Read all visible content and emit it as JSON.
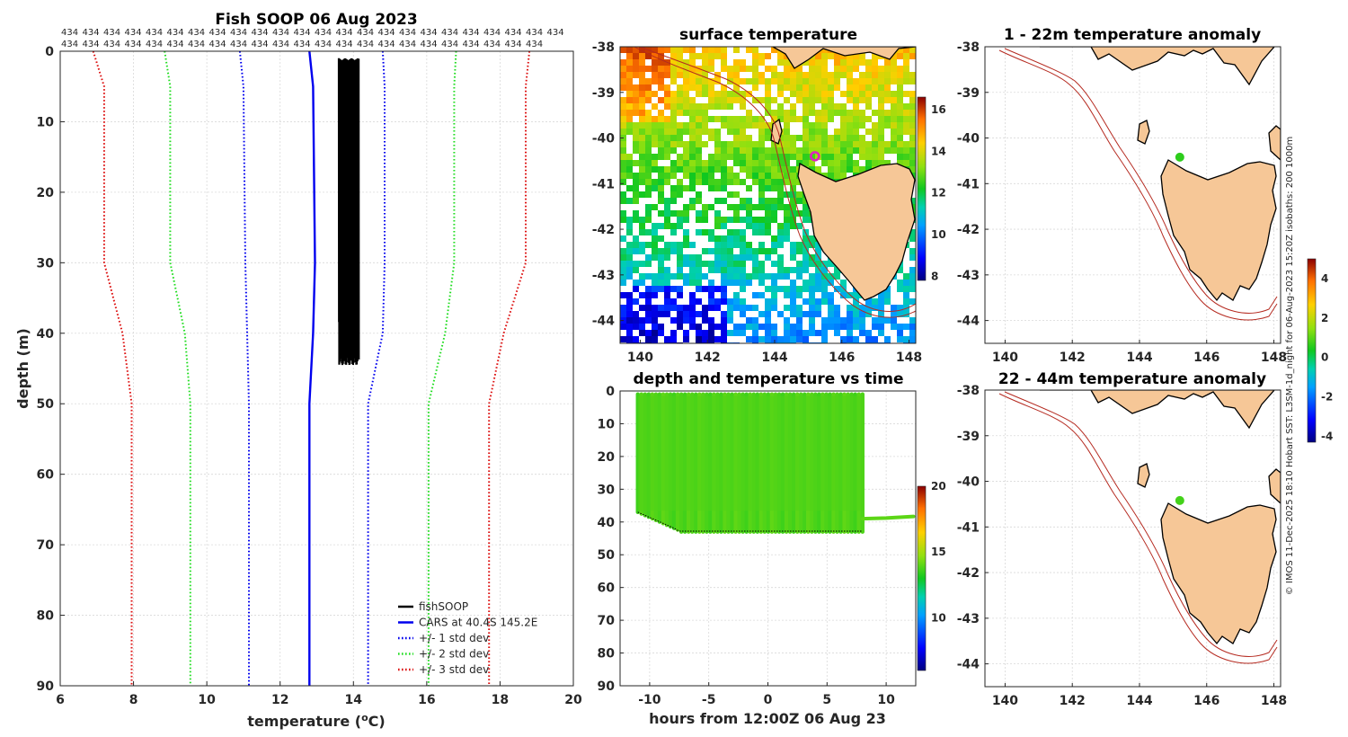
{
  "figure": {
    "credit": "© IMOS 11-Dec-2025 18:10 Hobart SST: L3SM-1d_night for 06-Aug-2023 15:20Z isobaths: 200  1000m"
  },
  "profile": {
    "title": "Fish SOOP 06 Aug 2023",
    "xlabel": "temperature (°C)",
    "xlabel_base": "temperature (",
    "xlabel_sup": "o",
    "xlabel_end": "C)",
    "ylabel": "depth (m)",
    "top_row1": [
      "434",
      "434",
      "434",
      "434",
      "434",
      "434",
      "434",
      "434",
      "434",
      "434",
      "434",
      "434",
      "434",
      "434",
      "434",
      "434",
      "434",
      "434",
      "434",
      "434",
      "434",
      "434",
      "434",
      "434"
    ],
    "top_row2": [
      "434",
      "434",
      "434",
      "434",
      "434",
      "434",
      "434",
      "434",
      "434",
      "434",
      "434",
      "434",
      "434",
      "434",
      "434",
      "434",
      "434",
      "434",
      "434",
      "434",
      "434",
      "434",
      "434"
    ],
    "legend": [
      {
        "label": "fishSOOP",
        "color": "#000000",
        "style": "solid"
      },
      {
        "label": "CARS at 40.4S 145.2E",
        "color": "#0000ee",
        "style": "solid"
      },
      {
        "label": "+/- 1 std dev",
        "color": "#0000ee",
        "style": "dotted"
      },
      {
        "label": "+/- 2 std dev",
        "color": "#22dd22",
        "style": "dotted"
      },
      {
        "label": "+/- 3 std dev",
        "color": "#dd1111",
        "style": "dotted"
      }
    ]
  },
  "surface_map": {
    "title": "surface temperature",
    "colorbar_ticks": [
      "8",
      "10",
      "12",
      "14",
      "16"
    ]
  },
  "time_panel": {
    "title": "depth and temperature vs time",
    "xlabel": "hours from 12:00Z 06 Aug 23",
    "colorbar_ticks": [
      "10",
      "15",
      "20"
    ]
  },
  "anomaly_top": {
    "title": "1 - 22m temperature anomaly"
  },
  "anomaly_bottom": {
    "title": "22 - 44m temperature anomaly"
  },
  "anomaly_colorbar": {
    "ticks": [
      "-4",
      "-2",
      "0",
      "2",
      "4"
    ]
  },
  "chart_data": [
    {
      "type": "line",
      "title": "Fish SOOP 06 Aug 2023",
      "xlabel": "temperature (°C)",
      "ylabel": "depth (m)",
      "xlim": [
        6,
        20
      ],
      "ylim": [
        0,
        90
      ],
      "y_reversed": true,
      "xticks": [
        6,
        8,
        10,
        12,
        14,
        16,
        18,
        20
      ],
      "yticks": [
        0,
        10,
        20,
        30,
        40,
        50,
        60,
        70,
        80,
        90
      ],
      "grid": true,
      "legend_position": "bottom-right",
      "series": [
        {
          "name": "CARS at 40.4S 145.2E",
          "color": "#0000ee",
          "style": "solid",
          "depth": [
            0,
            5,
            30,
            40,
            50,
            90
          ],
          "temp": [
            12.8,
            12.9,
            12.95,
            12.9,
            12.8,
            12.8
          ]
        },
        {
          "name": "+1 std dev",
          "color": "#0000ee",
          "style": "dotted",
          "depth": [
            0,
            5,
            30,
            40,
            50,
            90
          ],
          "temp": [
            14.8,
            14.85,
            14.85,
            14.8,
            14.4,
            14.4
          ]
        },
        {
          "name": "-1 std dev",
          "color": "#0000ee",
          "style": "dotted",
          "depth": [
            0,
            5,
            30,
            40,
            50,
            90
          ],
          "temp": [
            10.9,
            11.0,
            11.05,
            11.1,
            11.15,
            11.15
          ]
        },
        {
          "name": "+2 std dev",
          "color": "#22dd22",
          "style": "dotted",
          "depth": [
            0,
            5,
            30,
            40,
            50,
            90
          ],
          "temp": [
            16.8,
            16.75,
            16.75,
            16.5,
            16.05,
            16.05
          ]
        },
        {
          "name": "-2 std dev",
          "color": "#22dd22",
          "style": "dotted",
          "depth": [
            0,
            5,
            30,
            40,
            50,
            90
          ],
          "temp": [
            8.85,
            9.0,
            9.0,
            9.4,
            9.55,
            9.55
          ]
        },
        {
          "name": "+3 std dev",
          "color": "#dd1111",
          "style": "dotted",
          "depth": [
            0,
            5,
            30,
            40,
            50,
            90
          ],
          "temp": [
            18.8,
            18.7,
            18.7,
            18.1,
            17.7,
            17.7
          ]
        },
        {
          "name": "-3 std dev",
          "color": "#dd1111",
          "style": "dotted",
          "depth": [
            0,
            5,
            30,
            40,
            50,
            90
          ],
          "temp": [
            6.9,
            7.2,
            7.2,
            7.7,
            7.95,
            7.95
          ]
        },
        {
          "name": "fishSOOP",
          "color": "#000000",
          "style": "solid",
          "type": "band",
          "depth_range": [
            1,
            44.5
          ],
          "temp_range": [
            13.6,
            14.15
          ]
        }
      ]
    },
    {
      "type": "heatmap",
      "title": "surface temperature",
      "xlim": [
        139.4,
        148.2
      ],
      "ylim": [
        -44.5,
        -38
      ],
      "xticks": [
        140,
        142,
        144,
        146,
        148
      ],
      "yticks": [
        -38,
        -39,
        -40,
        -41,
        -42,
        -43,
        -44
      ],
      "colorbar": {
        "range": [
          7.8,
          16.6
        ],
        "ticks": [
          8,
          10,
          12,
          14,
          16
        ]
      },
      "marker": {
        "lon": 145.2,
        "lat": -40.4
      }
    },
    {
      "type": "scatter",
      "title": "depth and temperature vs time",
      "xlabel": "hours from 12:00Z 06 Aug 23",
      "xlim": [
        -12.5,
        12.5
      ],
      "ylim": [
        0,
        90
      ],
      "y_reversed": true,
      "xticks": [
        -10,
        -5,
        0,
        5,
        10
      ],
      "yticks": [
        0,
        10,
        20,
        30,
        40,
        50,
        60,
        70,
        80,
        90
      ],
      "colorbar": {
        "range": [
          6,
          20
        ],
        "ticks": [
          10,
          15,
          20
        ]
      },
      "casts": {
        "hours_range": [
          -11,
          8
        ],
        "depth_range": [
          1,
          44
        ],
        "temp_range": [
          13.6,
          14.1
        ]
      },
      "surface_track": {
        "hours": [
          8,
          10,
          12.3
        ],
        "depth": [
          37.5,
          37.3,
          36.8
        ],
        "temp": [
          14.0,
          14.0,
          14.0
        ]
      }
    },
    {
      "type": "heatmap",
      "title": "1 - 22m temperature anomaly",
      "xlim": [
        139.4,
        148.2
      ],
      "ylim": [
        -44.5,
        -38
      ],
      "xticks": [
        140,
        142,
        144,
        146,
        148
      ],
      "yticks": [
        -38,
        -39,
        -40,
        -41,
        -42,
        -43,
        -44
      ],
      "colorbar": {
        "range": [
          -4.3,
          5
        ],
        "ticks": [
          -4,
          -2,
          0,
          2,
          4
        ]
      },
      "points": [
        {
          "lon": 145.2,
          "lat": -40.42,
          "anomaly": 0.6
        }
      ]
    },
    {
      "type": "heatmap",
      "title": "22 - 44m temperature anomaly",
      "xlim": [
        139.4,
        148.2
      ],
      "ylim": [
        -44.5,
        -38
      ],
      "xticks": [
        140,
        142,
        144,
        146,
        148
      ],
      "yticks": [
        -38,
        -39,
        -40,
        -41,
        -42,
        -43,
        -44
      ],
      "colorbar": {
        "range": [
          -4.3,
          5
        ],
        "ticks": [
          -4,
          -2,
          0,
          2,
          4
        ]
      },
      "points": [
        {
          "lon": 145.2,
          "lat": -40.42,
          "anomaly": 0.8
        }
      ]
    }
  ]
}
